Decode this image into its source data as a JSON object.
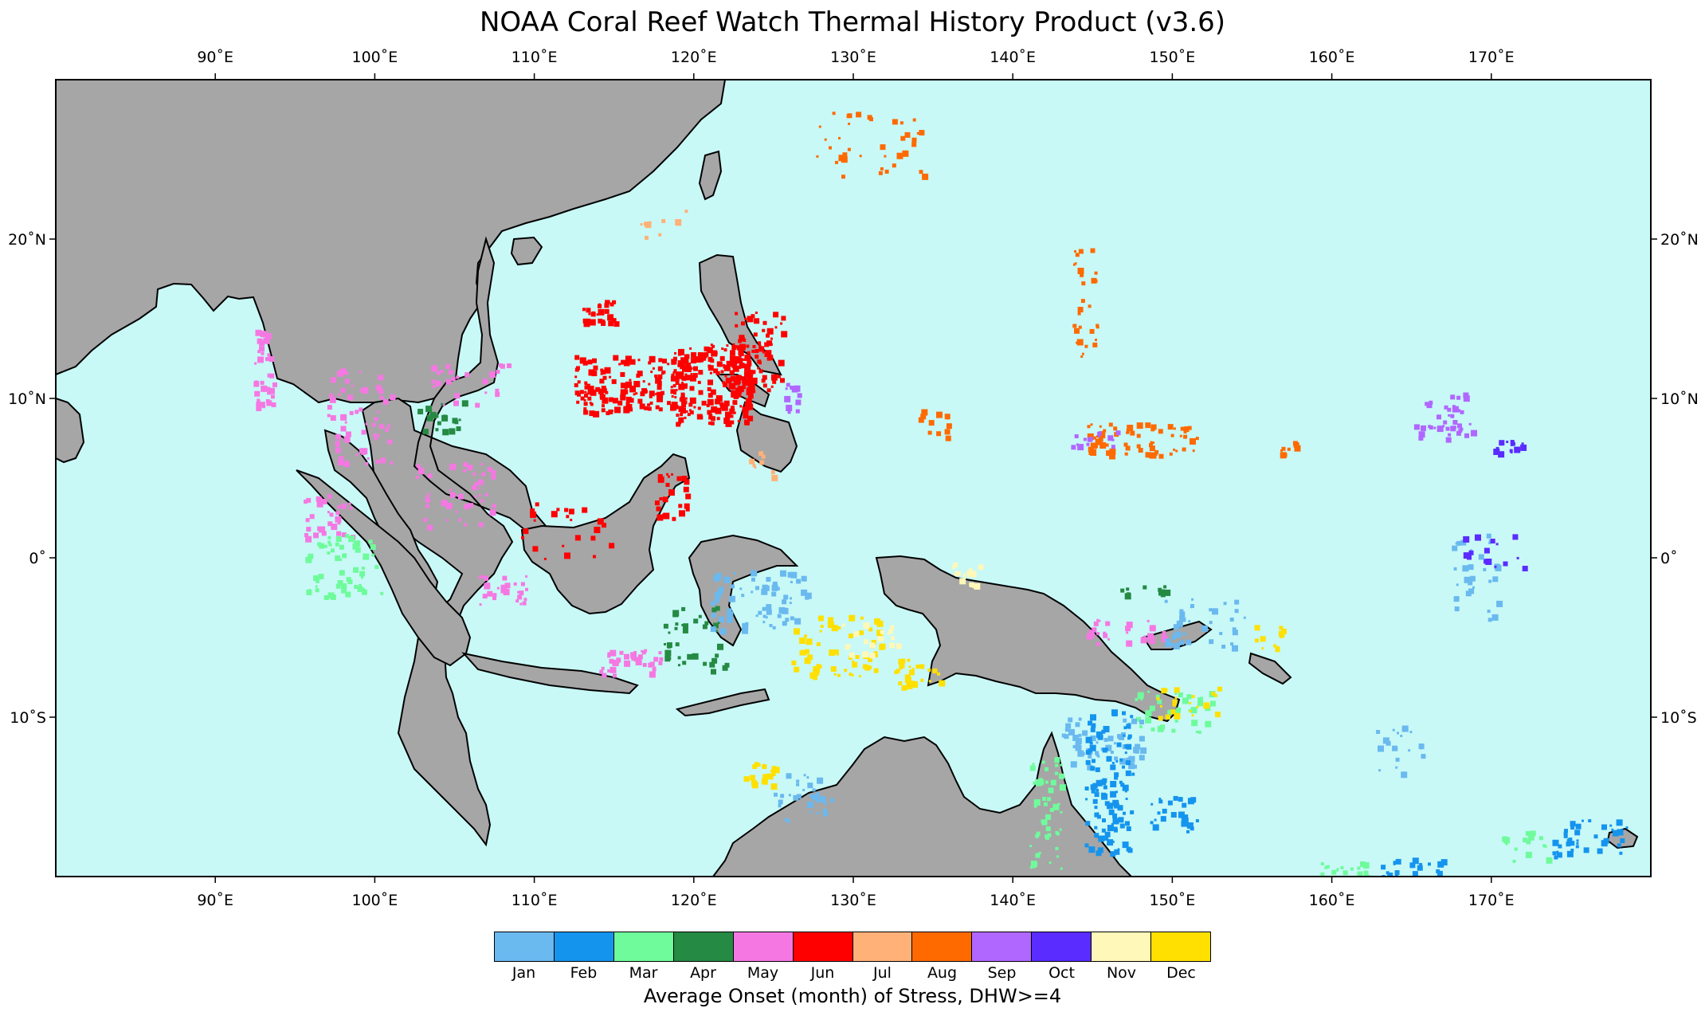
{
  "title": "NOAA Coral Reef Watch Thermal History Product (v3.6)",
  "map": {
    "lon_range": [
      80,
      180
    ],
    "lat_range": [
      -20,
      30
    ],
    "ocean_color": "#c8f9f7",
    "land_color": "#a6a6a6",
    "lon_ticks": [
      "90˚E",
      "100˚E",
      "110˚E",
      "120˚E",
      "130˚E",
      "140˚E",
      "150˚E",
      "160˚E",
      "170˚E"
    ],
    "lat_ticks": [
      "20˚N",
      "10˚N",
      "0˚",
      "10˚S"
    ]
  },
  "legend": {
    "title": "Average Onset (month) of Stress, DHW>=4",
    "months": [
      {
        "label": "Jan",
        "color": "#6ab9ef"
      },
      {
        "label": "Feb",
        "color": "#1594ee"
      },
      {
        "label": "Mar",
        "color": "#6ffb9c"
      },
      {
        "label": "Apr",
        "color": "#258a43"
      },
      {
        "label": "May",
        "color": "#f578e2"
      },
      {
        "label": "Jun",
        "color": "#ff0000"
      },
      {
        "label": "Jul",
        "color": "#ffb178"
      },
      {
        "label": "Aug",
        "color": "#ff6a00"
      },
      {
        "label": "Sep",
        "color": "#b067ff"
      },
      {
        "label": "Oct",
        "color": "#5a2cff"
      },
      {
        "label": "Nov",
        "color": "#fff8b8"
      },
      {
        "label": "Dec",
        "color": "#ffe000"
      }
    ]
  }
}
